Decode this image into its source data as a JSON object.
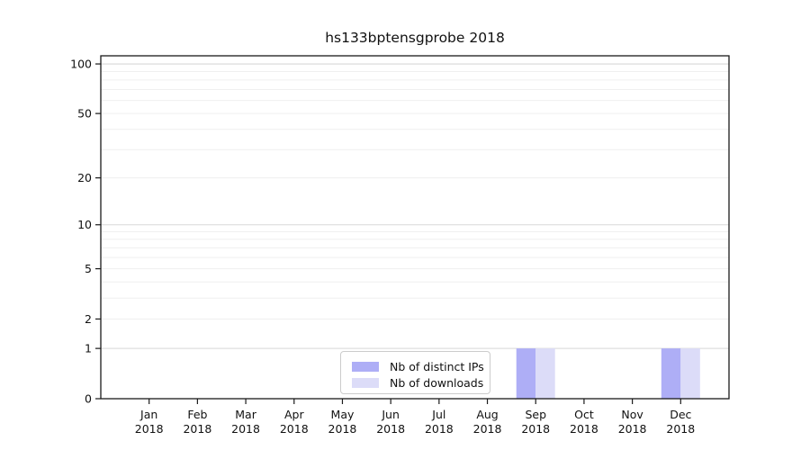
{
  "figure": {
    "title": "hs133bptensgprobe 2018"
  },
  "chart_data": {
    "type": "bar",
    "title": "hs133bptensgprobe 2018",
    "categories": [
      "Jan",
      "Feb",
      "Mar",
      "Apr",
      "May",
      "Jun",
      "Jul",
      "Aug",
      "Sep",
      "Oct",
      "Nov",
      "Dec"
    ],
    "category_year": "2018",
    "series": [
      {
        "name": "Nb of distinct IPs",
        "color": "#aeaef6",
        "values": [
          0,
          0,
          0,
          0,
          0,
          0,
          0,
          0,
          1,
          0,
          0,
          1
        ]
      },
      {
        "name": "Nb of downloads",
        "color": "#dcdcf8",
        "values": [
          0,
          0,
          0,
          0,
          0,
          0,
          0,
          0,
          1,
          0,
          0,
          1
        ]
      }
    ],
    "yscale": "log1p",
    "ylim": [
      0,
      112
    ],
    "yticks": [
      0,
      1,
      2,
      5,
      10,
      20,
      50,
      100
    ],
    "minor_gridlines": [
      2,
      3,
      4,
      5,
      6,
      7,
      8,
      9,
      20,
      30,
      40,
      50,
      60,
      70,
      80,
      90
    ],
    "major_gridlines": [
      1,
      10,
      100
    ],
    "grid": true,
    "legend_position": "inside-bottom-center",
    "colors": {
      "spine": "#1a1a1a",
      "grid_minor": "#efefef",
      "grid_major": "#d8d8d8",
      "text": "#111111",
      "background": "#ffffff"
    }
  }
}
